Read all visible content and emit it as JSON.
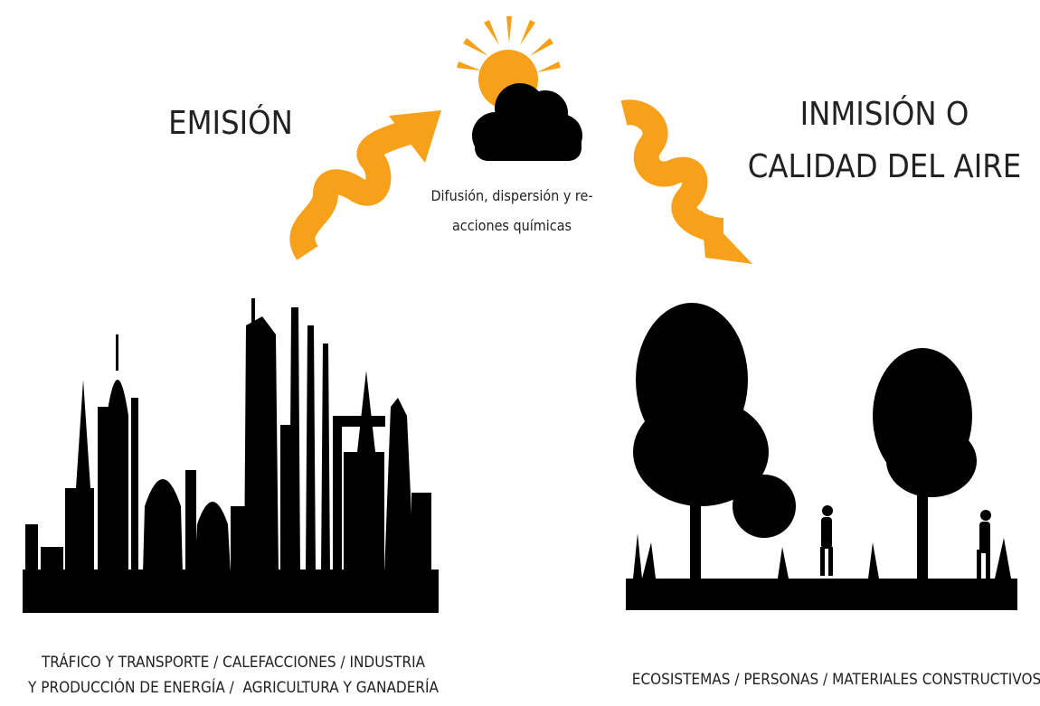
{
  "emission": {
    "title": "EMISIÓN",
    "caption": [
      "TRÁFICO Y TRANSPORTE / CALEFACCIONES / INDUSTRIA",
      "Y PRODUCCIÓN DE ENERGÍA /  AGRICULTURA Y GANADERÍA"
    ]
  },
  "process": {
    "caption": [
      "Difusión, dispersión y re-",
      "acciones químicas"
    ]
  },
  "immission": {
    "title": [
      "INMISIÓN O",
      "CALIDAD DEL AIRE"
    ],
    "caption": "ECOSISTEMAS / PERSONAS / MATERIALES CONSTRUCTIVOS"
  }
}
